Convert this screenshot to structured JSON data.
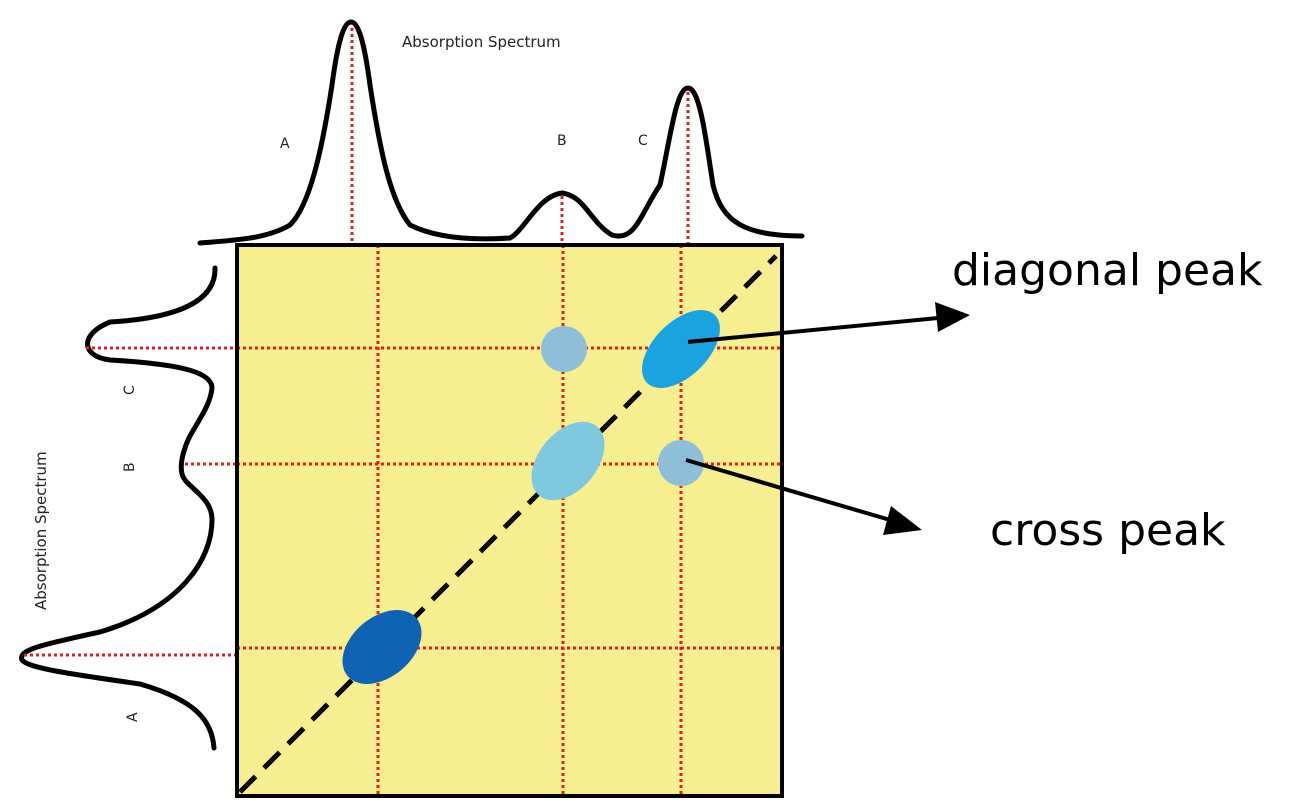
{
  "top_spectrum": {
    "title": "Absorption Spectrum",
    "peak_labels": [
      "A",
      "B",
      "C"
    ]
  },
  "left_spectrum": {
    "title": "Absorption Spectrum",
    "peak_labels": [
      "A",
      "B",
      "C"
    ]
  },
  "callouts": {
    "diagonal": "diagonal peak",
    "cross": "cross peak"
  },
  "colors": {
    "plot_background": "#f7ef8f",
    "gridline": "#e02020",
    "diagonal_peak_A": "#0f63b4",
    "diagonal_peak_B": "#7ec9e0",
    "diagonal_peak_C": "#1ba3e0",
    "cross_peak": "#8ebfd8"
  }
}
